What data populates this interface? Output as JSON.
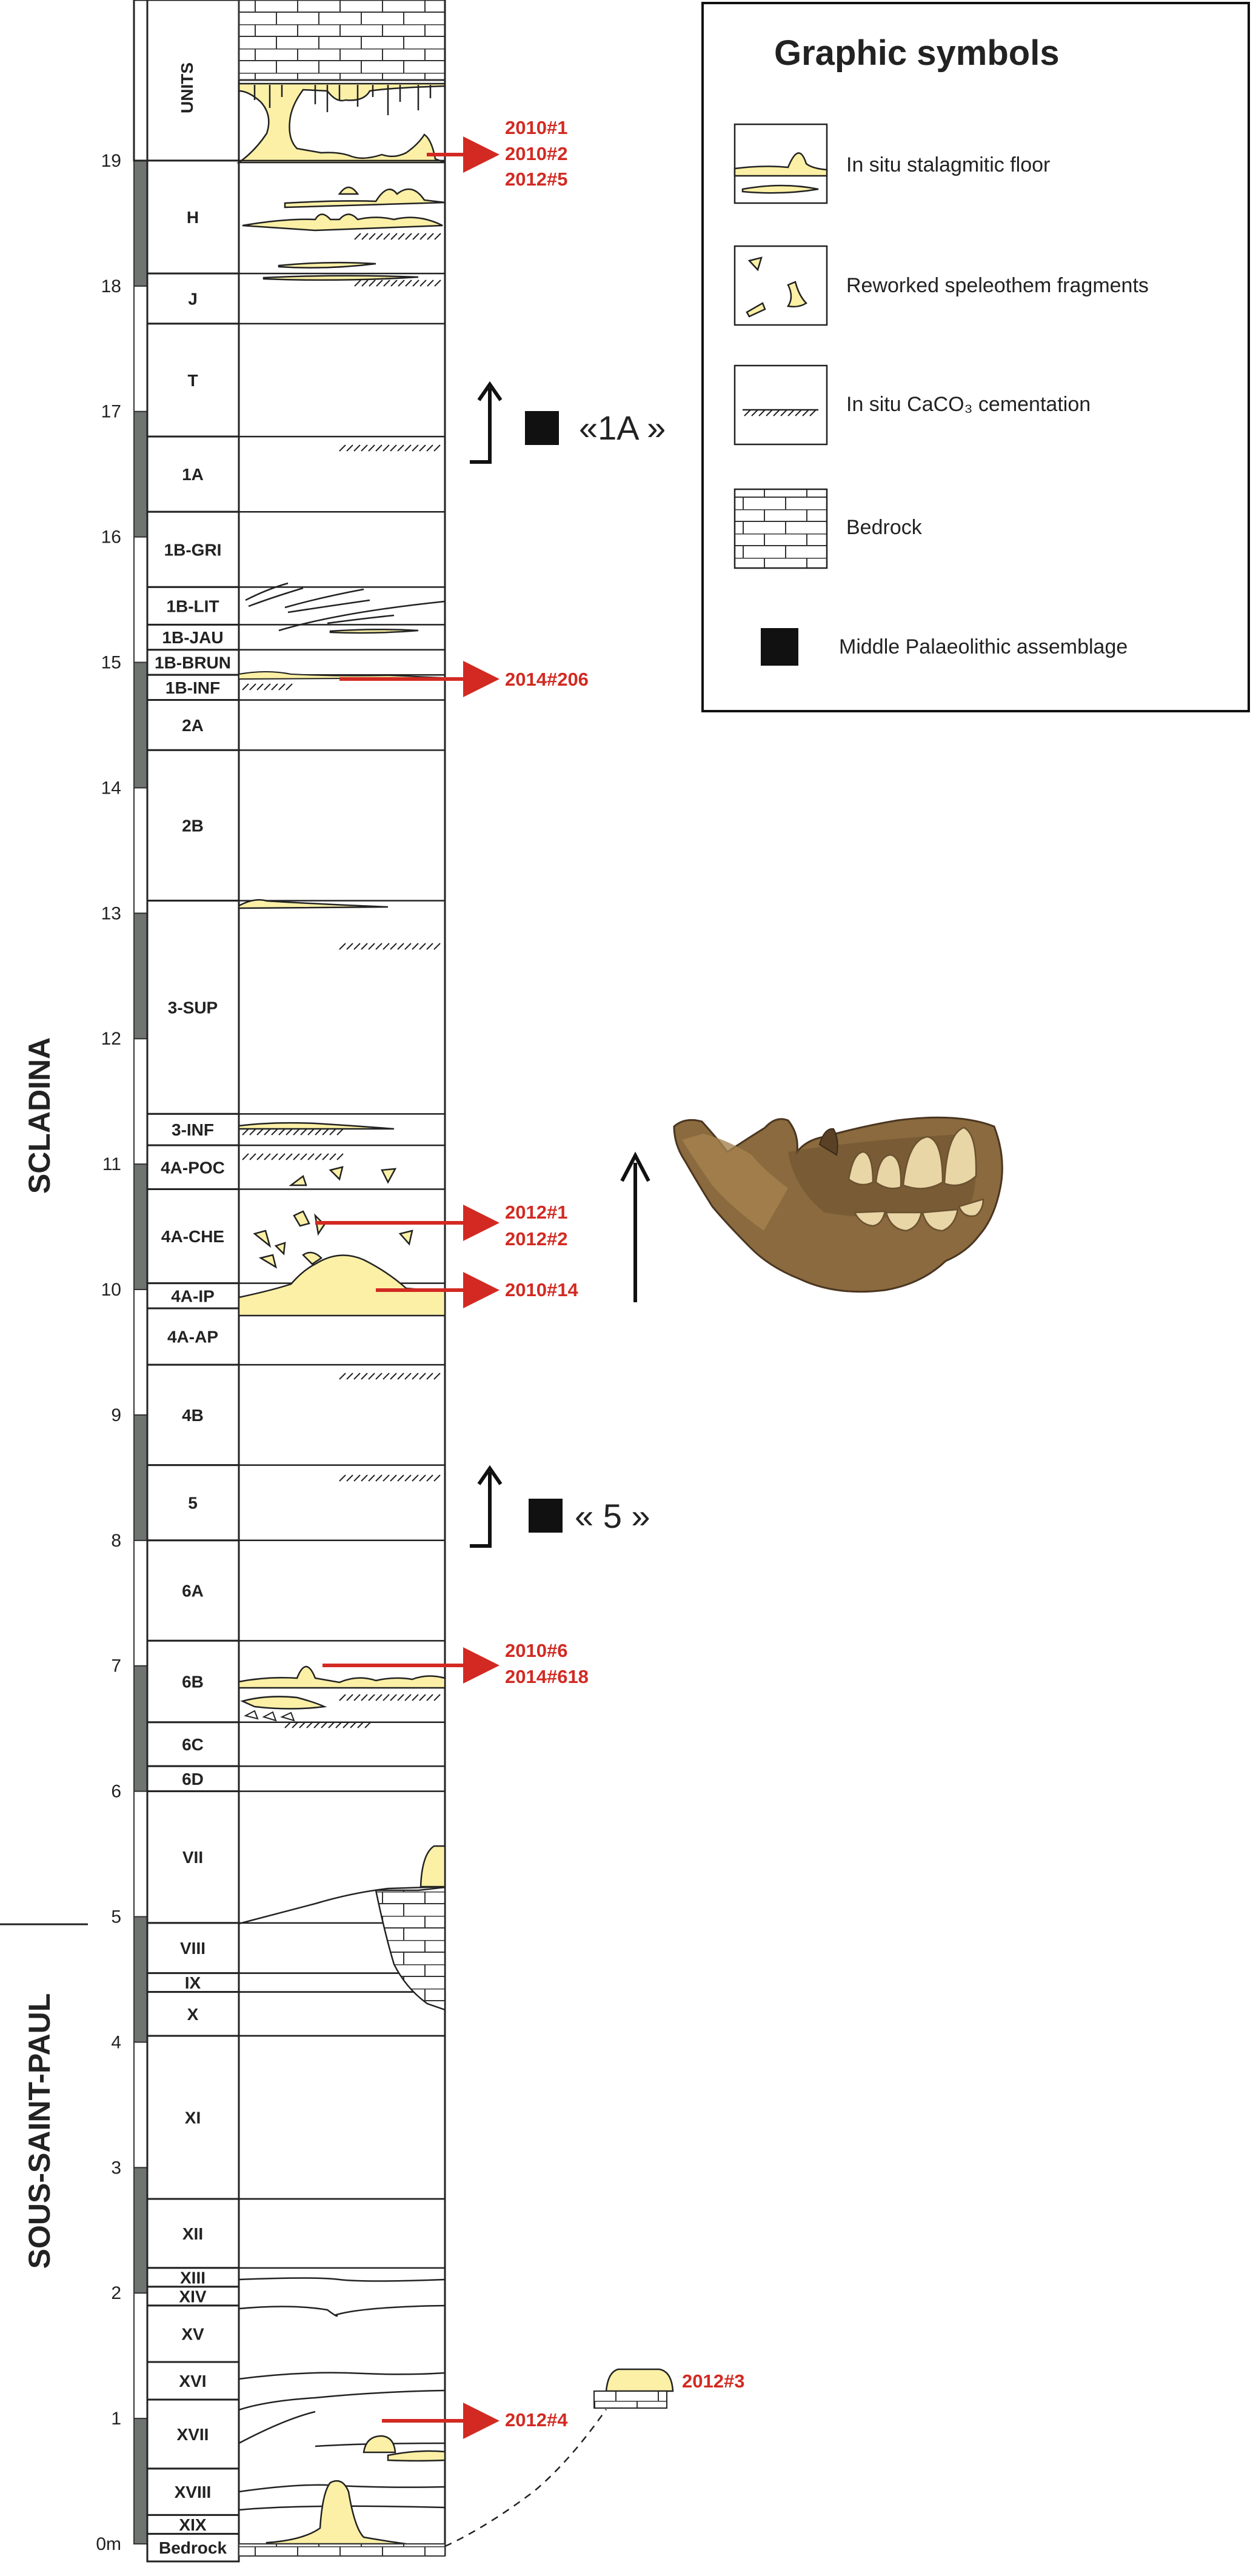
{
  "column": {
    "header": "UNITS",
    "scale_labels": [
      "0m",
      "1",
      "2",
      "3",
      "4",
      "5",
      "6",
      "7",
      "8",
      "9",
      "10",
      "11",
      "12",
      "13",
      "14",
      "15",
      "16",
      "17",
      "18",
      "19"
    ],
    "units": [
      {
        "label": "H",
        "top": 19.0,
        "bottom": 18.1
      },
      {
        "label": "J",
        "top": 18.1,
        "bottom": 17.7
      },
      {
        "label": "T",
        "top": 17.7,
        "bottom": 16.8
      },
      {
        "label": "1A",
        "top": 16.8,
        "bottom": 16.2
      },
      {
        "label": "1B-GRI",
        "top": 16.2,
        "bottom": 15.6
      },
      {
        "label": "1B-LIT",
        "top": 15.6,
        "bottom": 15.3
      },
      {
        "label": "1B-JAU",
        "top": 15.3,
        "bottom": 15.1
      },
      {
        "label": "1B-BRUN",
        "top": 15.1,
        "bottom": 14.9
      },
      {
        "label": "1B-INF",
        "top": 14.9,
        "bottom": 14.7
      },
      {
        "label": "2A",
        "top": 14.7,
        "bottom": 14.3
      },
      {
        "label": "2B",
        "top": 14.3,
        "bottom": 13.1
      },
      {
        "label": "3-SUP",
        "top": 13.1,
        "bottom": 11.4
      },
      {
        "label": "3-INF",
        "top": 11.4,
        "bottom": 11.15
      },
      {
        "label": "4A-POC",
        "top": 11.15,
        "bottom": 10.8
      },
      {
        "label": "4A-CHE",
        "top": 10.8,
        "bottom": 10.05
      },
      {
        "label": "4A-IP",
        "top": 10.05,
        "bottom": 9.85
      },
      {
        "label": "4A-AP",
        "top": 9.85,
        "bottom": 9.4
      },
      {
        "label": "4B",
        "top": 9.4,
        "bottom": 8.6
      },
      {
        "label": "5",
        "top": 8.6,
        "bottom": 8.0
      },
      {
        "label": "6A",
        "top": 8.0,
        "bottom": 7.2
      },
      {
        "label": "6B",
        "top": 7.2,
        "bottom": 6.55
      },
      {
        "label": "6C",
        "top": 6.55,
        "bottom": 6.2
      },
      {
        "label": "6D",
        "top": 6.2,
        "bottom": 6.0
      },
      {
        "label": "VII",
        "top": 6.0,
        "bottom": 4.95
      },
      {
        "label": "VIII",
        "top": 4.95,
        "bottom": 4.55
      },
      {
        "label": "IX",
        "top": 4.55,
        "bottom": 4.4
      },
      {
        "label": "X",
        "top": 4.4,
        "bottom": 4.05
      },
      {
        "label": "XI",
        "top": 4.05,
        "bottom": 2.75
      },
      {
        "label": "XII",
        "top": 2.75,
        "bottom": 2.2
      },
      {
        "label": "XIII",
        "top": 2.2,
        "bottom": 2.05
      },
      {
        "label": "XIV",
        "top": 2.05,
        "bottom": 1.9
      },
      {
        "label": "XV",
        "top": 1.9,
        "bottom": 1.45
      },
      {
        "label": "XVI",
        "top": 1.45,
        "bottom": 1.15
      },
      {
        "label": "XVII",
        "top": 1.15,
        "bottom": 0.6
      },
      {
        "label": "XVIII",
        "top": 0.6,
        "bottom": 0.23
      },
      {
        "label": "XIX",
        "top": 0.23,
        "bottom": 0.08
      },
      {
        "label": "Bedrock",
        "top": 0.08,
        "bottom": -0.14
      }
    ]
  },
  "sites": {
    "upper": "SCLADINA",
    "lower": "SOUS-SAINT-PAUL"
  },
  "sample_labels": {
    "group_top": [
      "2010#1",
      "2010#2",
      "2012#5"
    ],
    "group_brun": [
      "2014#206"
    ],
    "group_che": [
      "2012#1",
      "2012#2"
    ],
    "group_ip": [
      "2010#14"
    ],
    "group_6b": [
      "2010#6",
      "2014#618"
    ],
    "group_xvii": [
      "2012#4"
    ],
    "group_outcrop": [
      "2012#3"
    ]
  },
  "assemblages": {
    "a1": "«1A »",
    "a5": "« 5 »"
  },
  "legend": {
    "title": "Graphic symbols",
    "items": [
      {
        "icon": "stalagmitic-floor-icon",
        "label": "In situ stalagmitic floor"
      },
      {
        "icon": "speleothem-fragments-icon",
        "label": "Reworked speleothem fragments"
      },
      {
        "icon": "cementation-icon",
        "label": "In situ CaCO₃ cementation"
      },
      {
        "icon": "bedrock-icon",
        "label": "Bedrock"
      },
      {
        "icon": "black-square-icon",
        "label": "Middle Palaeolithic assemblage"
      }
    ]
  },
  "colors": {
    "stalagmite_fill": "#fbf0a6",
    "arrow_red": "#d22a22",
    "scale_grey": "#6f7470",
    "jaw_brown": "#8a6a3e"
  }
}
